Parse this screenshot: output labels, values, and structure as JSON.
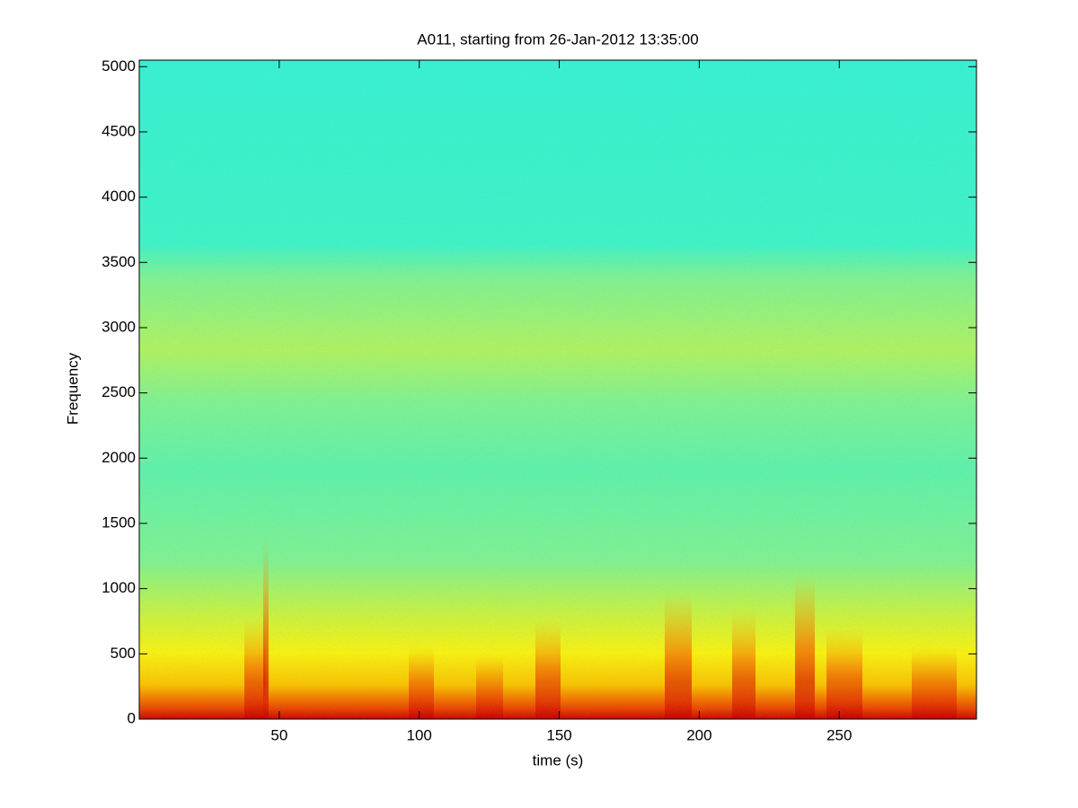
{
  "chart_data": {
    "type": "spectrogram",
    "title": "A011, starting from 26-Jan-2012 13:35:00",
    "x_label": "time (s)",
    "y_label": "Frequency",
    "xlim": [
      0,
      299
    ],
    "xticks": [
      50,
      100,
      150,
      200,
      250
    ],
    "ylim": [
      0,
      5050
    ],
    "yticks": [
      0,
      500,
      1000,
      1500,
      2000,
      2500,
      3000,
      3500,
      4000,
      4500,
      5000
    ]
  }
}
